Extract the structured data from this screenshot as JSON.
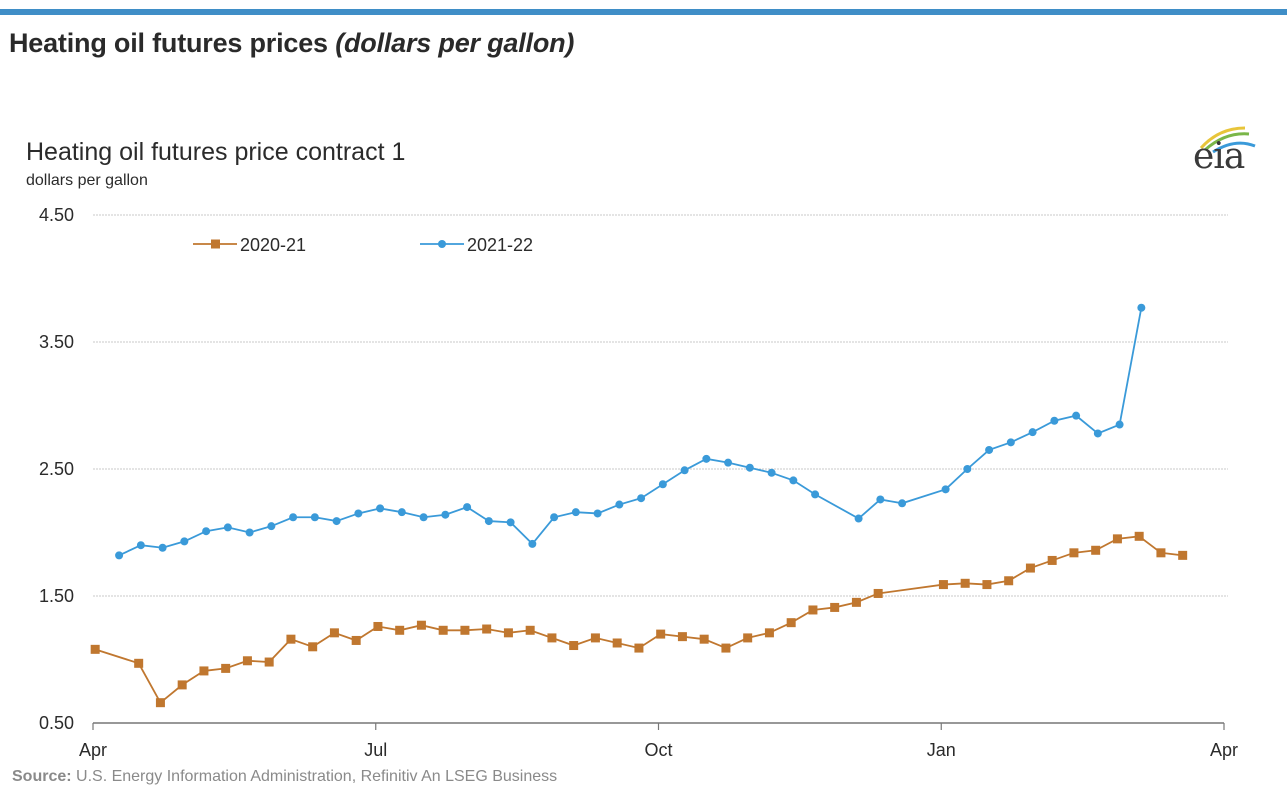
{
  "header": {
    "title": "Heating oil futures prices",
    "title_units": "(dollars per gallon)",
    "accent_color": "#3f8ec7"
  },
  "logo": {
    "text": "eia",
    "icon": "eia-logo-icon"
  },
  "footer": {
    "source_label": "Source:",
    "source_text": " U.S. Energy Information Administration, Refinitiv An LSEG Business"
  },
  "chart_data": {
    "type": "line",
    "title": "Heating oil futures price contract 1",
    "subtitle": "dollars per gallon",
    "xlabel": "",
    "ylabel": "dollars per gallon",
    "x_unit": "weeks since Apr 1",
    "xlim": [
      0,
      52
    ],
    "ylim": [
      0.5,
      4.5
    ],
    "y_ticks": [
      0.5,
      1.5,
      2.5,
      3.5,
      4.5
    ],
    "y_tick_labels": [
      "0.50",
      "1.50",
      "2.50",
      "3.50",
      "4.50"
    ],
    "x_ticks": [
      0,
      13,
      26,
      39,
      52
    ],
    "x_tick_labels": [
      "Apr",
      "Jul",
      "Oct",
      "Jan",
      "Apr"
    ],
    "grid": true,
    "legend_position": "top-left",
    "series": [
      {
        "name": "2020-21",
        "color": "#c0772f",
        "marker": "square",
        "points": [
          [
            0.1,
            1.08
          ],
          [
            2.1,
            0.97
          ],
          [
            3.1,
            0.66
          ],
          [
            4.1,
            0.8
          ],
          [
            5.1,
            0.91
          ],
          [
            6.1,
            0.93
          ],
          [
            7.1,
            0.99
          ],
          [
            8.1,
            0.98
          ],
          [
            9.1,
            1.16
          ],
          [
            10.1,
            1.1
          ],
          [
            11.1,
            1.21
          ],
          [
            12.1,
            1.15
          ],
          [
            13.1,
            1.26
          ],
          [
            14.1,
            1.23
          ],
          [
            15.1,
            1.27
          ],
          [
            16.1,
            1.23
          ],
          [
            17.1,
            1.23
          ],
          [
            18.1,
            1.24
          ],
          [
            19.1,
            1.21
          ],
          [
            20.1,
            1.23
          ],
          [
            21.1,
            1.17
          ],
          [
            22.1,
            1.11
          ],
          [
            23.1,
            1.17
          ],
          [
            24.1,
            1.13
          ],
          [
            25.1,
            1.09
          ],
          [
            26.1,
            1.2
          ],
          [
            27.1,
            1.18
          ],
          [
            28.1,
            1.16
          ],
          [
            29.1,
            1.09
          ],
          [
            30.1,
            1.17
          ],
          [
            31.1,
            1.21
          ],
          [
            32.1,
            1.29
          ],
          [
            33.1,
            1.39
          ],
          [
            34.1,
            1.41
          ],
          [
            35.1,
            1.45
          ],
          [
            36.1,
            1.52
          ],
          [
            39.1,
            1.59
          ],
          [
            40.1,
            1.6
          ],
          [
            41.1,
            1.59
          ],
          [
            42.1,
            1.62
          ],
          [
            43.1,
            1.72
          ],
          [
            44.1,
            1.78
          ],
          [
            45.1,
            1.84
          ],
          [
            46.1,
            1.86
          ],
          [
            47.1,
            1.95
          ],
          [
            48.1,
            1.97
          ],
          [
            49.1,
            1.84
          ],
          [
            50.1,
            1.82
          ]
        ]
      },
      {
        "name": "2021-22",
        "color": "#3a9ad9",
        "marker": "circle",
        "points": [
          [
            1.2,
            1.82
          ],
          [
            2.2,
            1.9
          ],
          [
            3.2,
            1.88
          ],
          [
            4.2,
            1.93
          ],
          [
            5.2,
            2.01
          ],
          [
            6.2,
            2.04
          ],
          [
            7.2,
            2.0
          ],
          [
            8.2,
            2.05
          ],
          [
            9.2,
            2.12
          ],
          [
            10.2,
            2.12
          ],
          [
            11.2,
            2.09
          ],
          [
            12.2,
            2.15
          ],
          [
            13.2,
            2.19
          ],
          [
            14.2,
            2.16
          ],
          [
            15.2,
            2.12
          ],
          [
            16.2,
            2.14
          ],
          [
            17.2,
            2.2
          ],
          [
            18.2,
            2.09
          ],
          [
            19.2,
            2.08
          ],
          [
            20.2,
            1.91
          ],
          [
            21.2,
            2.12
          ],
          [
            22.2,
            2.16
          ],
          [
            23.2,
            2.15
          ],
          [
            24.2,
            2.22
          ],
          [
            25.2,
            2.27
          ],
          [
            26.2,
            2.38
          ],
          [
            27.2,
            2.49
          ],
          [
            28.2,
            2.58
          ],
          [
            29.2,
            2.55
          ],
          [
            30.2,
            2.51
          ],
          [
            31.2,
            2.47
          ],
          [
            32.2,
            2.41
          ],
          [
            33.2,
            2.3
          ],
          [
            35.2,
            2.11
          ],
          [
            36.2,
            2.26
          ],
          [
            37.2,
            2.23
          ],
          [
            39.2,
            2.34
          ],
          [
            40.2,
            2.5
          ],
          [
            41.2,
            2.65
          ],
          [
            42.2,
            2.71
          ],
          [
            43.2,
            2.79
          ],
          [
            44.2,
            2.88
          ],
          [
            45.2,
            2.92
          ],
          [
            46.2,
            2.78
          ],
          [
            47.2,
            2.85
          ],
          [
            48.2,
            3.77
          ]
        ]
      }
    ]
  }
}
